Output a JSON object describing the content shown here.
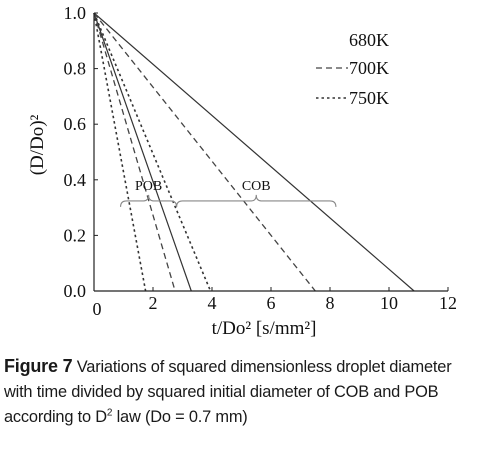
{
  "chart_data": {
    "type": "line",
    "title": "",
    "xlabel": "t/Do² [s/mm²]",
    "ylabel": "(D/Do)²",
    "xlim": [
      0,
      12
    ],
    "ylim": [
      0,
      1
    ],
    "x_ticks": [
      "0",
      "2",
      "4",
      "6",
      "8",
      "10",
      "12"
    ],
    "y_ticks": [
      "0.0",
      "0.2",
      "0.4",
      "0.6",
      "0.8",
      "1.0"
    ],
    "grid": false,
    "legend": {
      "placement": "top-right",
      "entries": [
        {
          "label": "680K",
          "style": "solid"
        },
        {
          "label": "700K",
          "style": "dashed"
        },
        {
          "label": "750K",
          "style": "dotted"
        }
      ]
    },
    "annotations": [
      {
        "text": "COB",
        "x_range": [
          2.8,
          8.2
        ],
        "y": 0.36
      },
      {
        "text": "POB",
        "x_range": [
          0.9,
          2.8
        ],
        "y": 0.36
      }
    ],
    "series": [
      {
        "name": "680K",
        "group": "COB",
        "style": "solid",
        "x": [
          0,
          10.85
        ],
        "y": [
          1.0,
          0.0
        ]
      },
      {
        "name": "700K",
        "group": "COB",
        "style": "dashed",
        "x": [
          0,
          7.5
        ],
        "y": [
          1.0,
          0.0
        ]
      },
      {
        "name": "750K",
        "group": "COB",
        "style": "dotted",
        "x": [
          0,
          3.95
        ],
        "y": [
          1.0,
          0.0
        ]
      },
      {
        "name": "680K",
        "group": "POB",
        "style": "solid",
        "x": [
          0,
          3.3
        ],
        "y": [
          1.0,
          0.0
        ]
      },
      {
        "name": "700K",
        "group": "POB",
        "style": "dashed",
        "x": [
          0,
          2.75
        ],
        "y": [
          1.0,
          0.0
        ]
      },
      {
        "name": "750K",
        "group": "POB",
        "style": "dotted",
        "x": [
          0,
          1.75
        ],
        "y": [
          1.0,
          0.0
        ]
      }
    ]
  },
  "caption": {
    "label": "Figure 7",
    "pre": " Variations of squared dimensionless droplet diameter with time divided by squared initial diameter of COB and POB according to D",
    "sup": "2",
    "post": " law (Do = 0.7 mm)"
  }
}
